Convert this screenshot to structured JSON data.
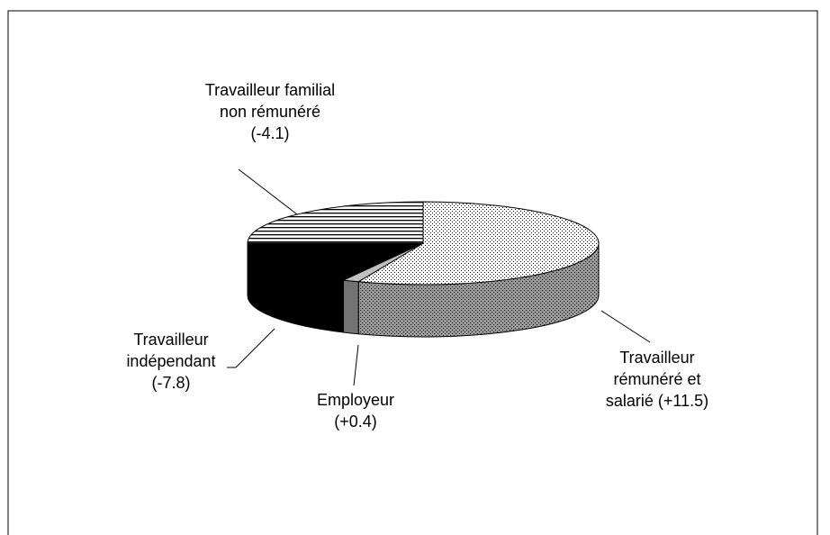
{
  "chart_data": {
    "type": "pie",
    "categories": [
      "Travailleur rémunéré et salarié (+11.5)",
      "Employeur (+0.4)",
      "Travailleur indépendant (-7.8)",
      "Travailleur familial non rémunéré (-4.1)"
    ],
    "values": [
      56,
      1.5,
      17.5,
      25
    ],
    "colors": [
      "#ffffff",
      "#c0c0c0",
      "#000000",
      "#ffffff"
    ]
  }
}
